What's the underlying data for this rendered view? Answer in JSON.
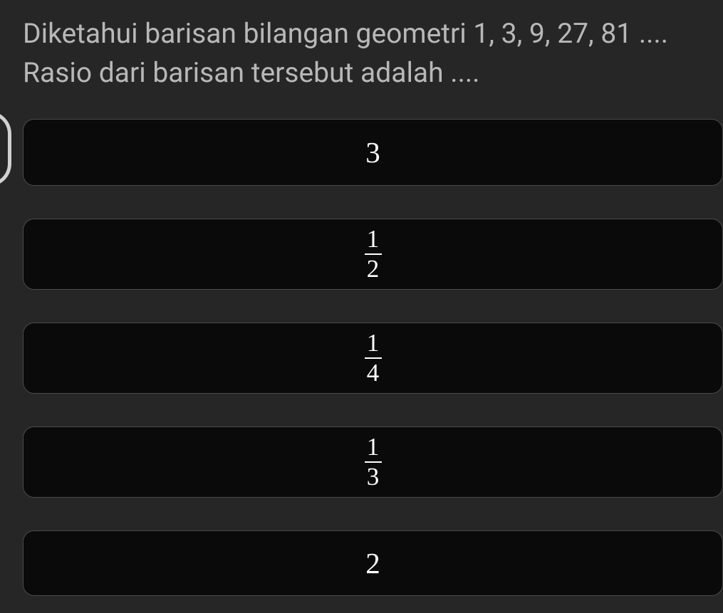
{
  "question": {
    "line1": "Diketahui barisan bilangan geometri 1, 3, 9, 27, 81 ....",
    "line2": "Rasio dari barisan tersebut adalah ....",
    "text_color": "#b8b8b8",
    "fontsize": 39
  },
  "options": [
    {
      "type": "integer",
      "value": "3"
    },
    {
      "type": "fraction",
      "numerator": "1",
      "denominator": "2"
    },
    {
      "type": "fraction",
      "numerator": "1",
      "denominator": "4"
    },
    {
      "type": "fraction",
      "numerator": "1",
      "denominator": "3"
    },
    {
      "type": "integer",
      "value": "2"
    }
  ],
  "styling": {
    "background_color": "#262626",
    "option_background": "#0a0a0a",
    "option_border_color": "#4a4a4a",
    "option_border_radius": 16,
    "option_text_color": "#ffffff",
    "integer_fontsize": 41,
    "fraction_fontsize": 35,
    "option_gap": 46,
    "side_decoration_color": "#d0d0d0"
  }
}
